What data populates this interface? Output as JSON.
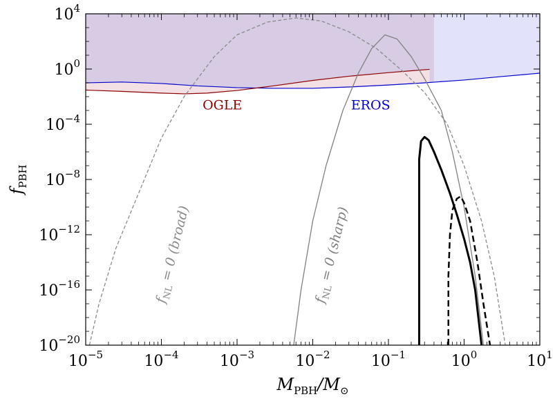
{
  "chart_data": {
    "type": "line",
    "title": "",
    "xlabel": {
      "main": "M",
      "sub": "PBH",
      "sep": "/M",
      "sub2": "⊙"
    },
    "ylabel": {
      "main": "f",
      "sub": "PBH"
    },
    "x_scale": "log",
    "y_scale": "log",
    "xlim": [
      1e-05,
      10
    ],
    "ylim": [
      1e-20,
      10000.0
    ],
    "grid": false,
    "legend": "none",
    "x_ticks": [
      {
        "base": "10",
        "exp": "−5",
        "value": 1e-05
      },
      {
        "base": "10",
        "exp": "−4",
        "value": 0.0001
      },
      {
        "base": "10",
        "exp": "−3",
        "value": 0.001
      },
      {
        "base": "10",
        "exp": "−2",
        "value": 0.01
      },
      {
        "base": "10",
        "exp": "−1",
        "value": 0.1
      },
      {
        "base": "10",
        "exp": "0",
        "value": 1
      },
      {
        "base": "10",
        "exp": "1",
        "value": 10
      }
    ],
    "y_ticks": [
      {
        "base": "10",
        "exp": "−20",
        "value": 1e-20
      },
      {
        "base": "10",
        "exp": "−16",
        "value": 1e-16
      },
      {
        "base": "10",
        "exp": "−12",
        "value": 1e-12
      },
      {
        "base": "10",
        "exp": "−8",
        "value": 1e-08
      },
      {
        "base": "10",
        "exp": "−4",
        "value": 0.0001
      },
      {
        "base": "10",
        "exp": "0",
        "value": 1
      },
      {
        "base": "10",
        "exp": "4",
        "value": 10000.0
      }
    ],
    "regions": [
      {
        "name": "excluded-purple",
        "color": "#d8cce4",
        "x_range": [
          1e-05,
          0.4
        ],
        "y_upper": 10000.0
      },
      {
        "name": "excluded-lavender",
        "color": "#e2e2fb",
        "x_range": [
          0.4,
          10
        ],
        "y_upper": 10000.0
      }
    ],
    "series": [
      {
        "id": "eros",
        "color": "#0000cc",
        "style": "solid",
        "width": 1.2,
        "points": [
          [
            1e-05,
            0.1
          ],
          [
            3e-05,
            0.115
          ],
          [
            0.0001,
            0.09
          ],
          [
            0.0003,
            0.06
          ],
          [
            0.001,
            0.045
          ],
          [
            0.003,
            0.04
          ],
          [
            0.01,
            0.04
          ],
          [
            0.03,
            0.05
          ],
          [
            0.1,
            0.07
          ],
          [
            0.3,
            0.1
          ],
          [
            1,
            0.16
          ],
          [
            3,
            0.28
          ],
          [
            10,
            0.5
          ]
        ]
      },
      {
        "id": "ogle",
        "color": "#8b0000",
        "style": "solid",
        "width": 1.2,
        "points": [
          [
            1e-05,
            0.03
          ],
          [
            3e-05,
            0.024
          ],
          [
            0.0001,
            0.018
          ],
          [
            0.0002,
            0.016
          ],
          [
            0.0004,
            0.018
          ],
          [
            0.001,
            0.028
          ],
          [
            0.003,
            0.06
          ],
          [
            0.01,
            0.15
          ],
          [
            0.03,
            0.3
          ],
          [
            0.1,
            0.55
          ],
          [
            0.2,
            0.75
          ],
          [
            0.35,
            0.95
          ]
        ]
      },
      {
        "id": "fnl0-broad",
        "color": "#8a8a8a",
        "style": "dashed",
        "width": 1.3,
        "points": [
          [
            1.12e-05,
            1e-20
          ],
          [
            1.5e-05,
            1e-17
          ],
          [
            2.5e-05,
            1e-13
          ],
          [
            5e-05,
            1e-09
          ],
          [
            0.0001,
            1e-05
          ],
          [
            0.0002,
            0.01
          ],
          [
            0.0005,
            8
          ],
          [
            0.001,
            300
          ],
          [
            0.0025,
            2500
          ],
          [
            0.006,
            5000
          ],
          [
            0.013,
            3000
          ],
          [
            0.03,
            500
          ],
          [
            0.07,
            30
          ],
          [
            0.15,
            0.8
          ],
          [
            0.3,
            0.02
          ],
          [
            0.6,
            0.0001
          ],
          [
            1,
            1e-07
          ],
          [
            1.7,
            1e-11
          ],
          [
            2.5,
            1e-15
          ],
          [
            3.5,
            1e-20
          ]
        ]
      },
      {
        "id": "fnl0-sharp",
        "color": "#808080",
        "style": "solid",
        "width": 1.3,
        "points": [
          [
            0.0056,
            1e-20
          ],
          [
            0.007,
            1e-16
          ],
          [
            0.01,
            1e-11
          ],
          [
            0.015,
            1e-07
          ],
          [
            0.025,
            0.001
          ],
          [
            0.04,
            0.5
          ],
          [
            0.06,
            30
          ],
          [
            0.09,
            300
          ],
          [
            0.13,
            150
          ],
          [
            0.2,
            8
          ],
          [
            0.3,
            0.2
          ],
          [
            0.5,
            0.001
          ],
          [
            0.7,
            1e-06
          ],
          [
            1,
            1e-10
          ],
          [
            1.4,
            1e-15
          ],
          [
            1.8,
            1e-20
          ]
        ]
      },
      {
        "id": "thick-solid",
        "color": "#000000",
        "style": "solid",
        "width": 3,
        "points": [
          [
            0.255,
            1e-20
          ],
          [
            0.255,
            3e-07
          ],
          [
            0.27,
            6e-06
          ],
          [
            0.3,
            1.2e-05
          ],
          [
            0.34,
            7e-06
          ],
          [
            0.4,
            1e-06
          ],
          [
            0.5,
            5e-08
          ],
          [
            0.65,
            1e-09
          ],
          [
            0.8,
            3e-11
          ],
          [
            1.0,
            5e-13
          ],
          [
            1.2,
            1e-14
          ],
          [
            1.4,
            1e-16
          ],
          [
            1.7,
            1e-20
          ]
        ]
      },
      {
        "id": "thick-dashed",
        "color": "#000000",
        "style": "dashed",
        "width": 2.5,
        "points": [
          [
            0.62,
            1e-20
          ],
          [
            0.62,
            1e-15
          ],
          [
            0.65,
            1e-12
          ],
          [
            0.7,
            6e-11
          ],
          [
            0.8,
            4e-10
          ],
          [
            0.9,
            6e-10
          ],
          [
            1.0,
            2e-10
          ],
          [
            1.2,
            1e-11
          ],
          [
            1.5,
            1e-14
          ],
          [
            1.8,
            1e-17
          ],
          [
            2.2,
            1e-20
          ]
        ]
      }
    ],
    "annotations": [
      {
        "id": "ogle-label",
        "text": "OGLE",
        "color": "#8b0000",
        "x": 0.00035,
        "y": 0.0012,
        "rotate": 0
      },
      {
        "id": "eros-label",
        "text": "EROS",
        "color": "#0000cc",
        "x": 0.032,
        "y": 0.0012,
        "rotate": 0
      },
      {
        "id": "broad-label",
        "text_main": "f",
        "text_sub": "NL",
        "text_rest": " = 0 (broad)",
        "color": "#8a8a8a",
        "x": 0.00011,
        "y": 1e-17,
        "rotate": -76
      },
      {
        "id": "sharp-label",
        "text_main": "f",
        "text_sub": "NL",
        "text_rest": " = 0 (sharp)",
        "color": "#808080",
        "x": 0.014,
        "y": 1e-17,
        "rotate": -76
      }
    ]
  }
}
